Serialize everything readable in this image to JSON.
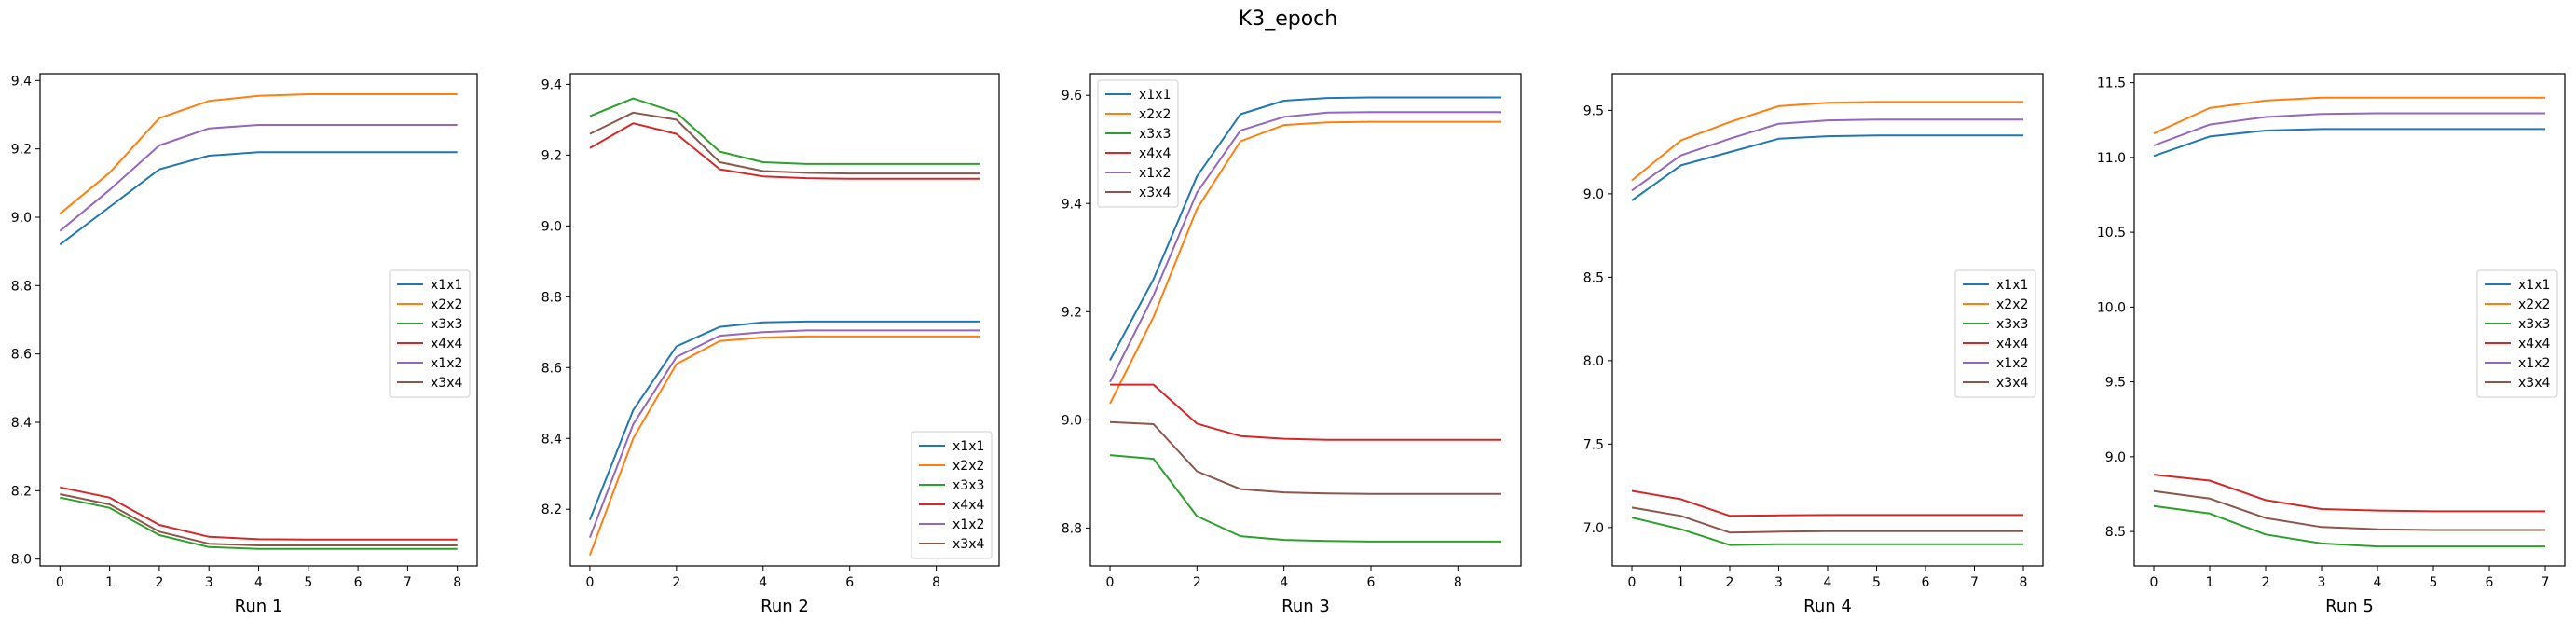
{
  "figure": {
    "title": "K3_epoch"
  },
  "colors": {
    "x1x1": "#1f77b4",
    "x2x2": "#ff7f0e",
    "x3x3": "#2ca02c",
    "x4x4": "#d62728",
    "x1x2": "#9467bd",
    "x3x4": "#8c564b"
  },
  "chart_data": [
    {
      "type": "line",
      "xlabel": "Run 1",
      "x": [
        0,
        1,
        2,
        3,
        4,
        5,
        6,
        7,
        8
      ],
      "xticks": [
        0,
        1,
        2,
        3,
        4,
        5,
        6,
        7,
        8
      ],
      "xlim": [
        -0.4,
        8.4
      ],
      "yticks": [
        8.0,
        8.2,
        8.4,
        8.6,
        8.8,
        9.0,
        9.2,
        9.4
      ],
      "ytick_labels": [
        "8.0",
        "8.2",
        "8.4",
        "8.6",
        "8.8",
        "9.0",
        "9.2",
        "9.4"
      ],
      "ylim": [
        7.98,
        9.42
      ],
      "legend": "center-right",
      "series": [
        {
          "name": "x1x1",
          "values": [
            8.92,
            9.03,
            9.14,
            9.18,
            9.19,
            9.19,
            9.19,
            9.19,
            9.19
          ]
        },
        {
          "name": "x2x2",
          "values": [
            9.01,
            9.13,
            9.29,
            9.34,
            9.355,
            9.36,
            9.36,
            9.36,
            9.36
          ]
        },
        {
          "name": "x3x3",
          "values": [
            8.18,
            8.15,
            8.07,
            8.035,
            8.03,
            8.03,
            8.03,
            8.03,
            8.03
          ]
        },
        {
          "name": "x4x4",
          "values": [
            8.21,
            8.18,
            8.1,
            8.065,
            8.058,
            8.057,
            8.057,
            8.057,
            8.057
          ]
        },
        {
          "name": "x1x2",
          "values": [
            8.96,
            9.08,
            9.21,
            9.26,
            9.27,
            9.27,
            9.27,
            9.27,
            9.27
          ]
        },
        {
          "name": "x3x4",
          "values": [
            8.19,
            8.16,
            8.08,
            8.045,
            8.04,
            8.04,
            8.04,
            8.04,
            8.04
          ]
        }
      ]
    },
    {
      "type": "line",
      "xlabel": "Run 2",
      "x": [
        0,
        1,
        2,
        3,
        4,
        5,
        6,
        7,
        8,
        9
      ],
      "xticks": [
        0,
        2,
        4,
        6,
        8
      ],
      "xlim": [
        -0.45,
        9.45
      ],
      "yticks": [
        8.2,
        8.4,
        8.6,
        8.8,
        9.0,
        9.2,
        9.4
      ],
      "ytick_labels": [
        "8.2",
        "8.4",
        "8.6",
        "8.8",
        "9.0",
        "9.2",
        "9.4"
      ],
      "ylim": [
        8.04,
        9.43
      ],
      "legend": "lower-right",
      "series": [
        {
          "name": "x1x1",
          "values": [
            8.17,
            8.48,
            8.66,
            8.715,
            8.728,
            8.73,
            8.73,
            8.73,
            8.73,
            8.73
          ]
        },
        {
          "name": "x2x2",
          "values": [
            8.07,
            8.4,
            8.61,
            8.675,
            8.685,
            8.688,
            8.688,
            8.688,
            8.688,
            8.688
          ]
        },
        {
          "name": "x3x3",
          "values": [
            9.31,
            9.36,
            9.32,
            9.21,
            9.18,
            9.175,
            9.175,
            9.175,
            9.175,
            9.175
          ]
        },
        {
          "name": "x4x4",
          "values": [
            9.22,
            9.29,
            9.26,
            9.16,
            9.14,
            9.135,
            9.133,
            9.133,
            9.133,
            9.133
          ]
        },
        {
          "name": "x1x2",
          "values": [
            8.12,
            8.44,
            8.63,
            8.69,
            8.7,
            8.705,
            8.705,
            8.705,
            8.705,
            8.705
          ]
        },
        {
          "name": "x3x4",
          "values": [
            9.26,
            9.32,
            9.3,
            9.18,
            9.155,
            9.15,
            9.148,
            9.148,
            9.148,
            9.148
          ]
        }
      ]
    },
    {
      "type": "line",
      "xlabel": "Run 3",
      "x": [
        0,
        1,
        2,
        3,
        4,
        5,
        6,
        7,
        8,
        9
      ],
      "xticks": [
        0,
        2,
        4,
        6,
        8
      ],
      "xlim": [
        -0.45,
        9.45
      ],
      "yticks": [
        8.8,
        9.0,
        9.2,
        9.4,
        9.6
      ],
      "ytick_labels": [
        "8.8",
        "9.0",
        "9.2",
        "9.4",
        "9.6"
      ],
      "ylim": [
        8.73,
        9.64
      ],
      "legend": "upper-left",
      "series": [
        {
          "name": "x1x1",
          "values": [
            9.11,
            9.26,
            9.45,
            9.565,
            9.59,
            9.595,
            9.596,
            9.596,
            9.596,
            9.596
          ]
        },
        {
          "name": "x2x2",
          "values": [
            9.03,
            9.19,
            9.39,
            9.515,
            9.545,
            9.55,
            9.551,
            9.551,
            9.551,
            9.551
          ]
        },
        {
          "name": "x3x3",
          "values": [
            8.935,
            8.928,
            8.822,
            8.785,
            8.778,
            8.776,
            8.775,
            8.775,
            8.775,
            8.775
          ]
        },
        {
          "name": "x4x4",
          "values": [
            9.065,
            9.065,
            8.993,
            8.97,
            8.965,
            8.963,
            8.963,
            8.963,
            8.963,
            8.963
          ]
        },
        {
          "name": "x1x2",
          "values": [
            9.07,
            9.23,
            9.42,
            9.535,
            9.56,
            9.568,
            9.569,
            9.569,
            9.569,
            9.569
          ]
        },
        {
          "name": "x3x4",
          "values": [
            8.996,
            8.992,
            8.905,
            8.872,
            8.866,
            8.864,
            8.863,
            8.863,
            8.863,
            8.863
          ]
        }
      ]
    },
    {
      "type": "line",
      "xlabel": "Run 4",
      "x": [
        0,
        1,
        2,
        3,
        4,
        5,
        6,
        7,
        8
      ],
      "xticks": [
        0,
        1,
        2,
        3,
        4,
        5,
        6,
        7,
        8
      ],
      "xlim": [
        -0.4,
        8.4
      ],
      "yticks": [
        7.0,
        7.5,
        8.0,
        8.5,
        9.0,
        9.5
      ],
      "ytick_labels": [
        "7.0",
        "7.5",
        "8.0",
        "8.5",
        "9.0",
        "9.5"
      ],
      "ylim": [
        6.77,
        9.72
      ],
      "legend": "center-right",
      "series": [
        {
          "name": "x1x1",
          "values": [
            8.96,
            9.17,
            9.25,
            9.33,
            9.345,
            9.35,
            9.35,
            9.35,
            9.35
          ]
        },
        {
          "name": "x2x2",
          "values": [
            9.08,
            9.32,
            9.43,
            9.525,
            9.545,
            9.55,
            9.55,
            9.55,
            9.55
          ]
        },
        {
          "name": "x3x3",
          "values": [
            7.06,
            6.99,
            6.895,
            6.9,
            6.9,
            6.9,
            6.9,
            6.9,
            6.9
          ]
        },
        {
          "name": "x4x4",
          "values": [
            7.22,
            7.17,
            7.07,
            7.073,
            7.075,
            7.075,
            7.075,
            7.075,
            7.075
          ]
        },
        {
          "name": "x1x2",
          "values": [
            9.02,
            9.23,
            9.33,
            9.42,
            9.44,
            9.445,
            9.445,
            9.445,
            9.445
          ]
        },
        {
          "name": "x3x4",
          "values": [
            7.12,
            7.07,
            6.97,
            6.975,
            6.978,
            6.978,
            6.978,
            6.978,
            6.978
          ]
        }
      ]
    },
    {
      "type": "line",
      "xlabel": "Run 5",
      "x": [
        0,
        1,
        2,
        3,
        4,
        5,
        6,
        7
      ],
      "xticks": [
        0,
        1,
        2,
        3,
        4,
        5,
        6,
        7
      ],
      "xlim": [
        -0.35,
        7.35
      ],
      "yticks": [
        8.5,
        9.0,
        9.5,
        10.0,
        10.5,
        11.0,
        11.5
      ],
      "ytick_labels": [
        "8.5",
        "9.0",
        "9.5",
        "10.0",
        "10.5",
        "11.0",
        "11.5"
      ],
      "ylim": [
        8.27,
        11.56
      ],
      "legend": "center-right",
      "series": [
        {
          "name": "x1x1",
          "values": [
            11.01,
            11.14,
            11.18,
            11.19,
            11.19,
            11.19,
            11.19,
            11.19
          ]
        },
        {
          "name": "x2x2",
          "values": [
            11.16,
            11.33,
            11.38,
            11.4,
            11.4,
            11.4,
            11.4,
            11.4
          ]
        },
        {
          "name": "x3x3",
          "values": [
            8.67,
            8.62,
            8.48,
            8.42,
            8.4,
            8.4,
            8.4,
            8.4
          ]
        },
        {
          "name": "x4x4",
          "values": [
            8.88,
            8.84,
            8.71,
            8.65,
            8.64,
            8.635,
            8.635,
            8.635
          ]
        },
        {
          "name": "x1x2",
          "values": [
            11.08,
            11.22,
            11.27,
            11.29,
            11.295,
            11.295,
            11.295,
            11.295
          ]
        },
        {
          "name": "x3x4",
          "values": [
            8.77,
            8.72,
            8.59,
            8.53,
            8.515,
            8.51,
            8.51,
            8.51
          ]
        }
      ]
    }
  ]
}
